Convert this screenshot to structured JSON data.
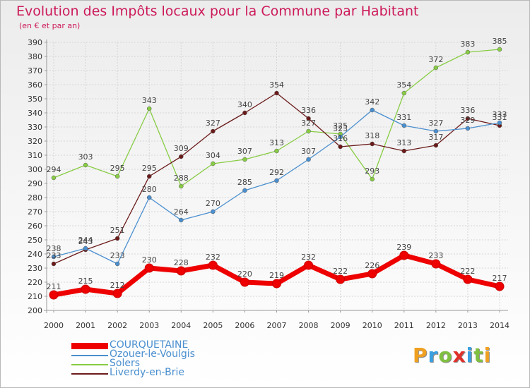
{
  "title": "Evolution des Impôts locaux pour la Commune par Habitant",
  "subtitle": "(en € et par an)",
  "logo": {
    "letters": [
      "P",
      "r",
      "o",
      "x",
      "i",
      "t",
      "i"
    ],
    "colors": [
      "#f0a020",
      "#3aa0e0",
      "#80c040",
      "#e0302a",
      "#3aa0e0",
      "#80c040",
      "#f0a020"
    ]
  },
  "chart_data": {
    "type": "line",
    "x": [
      "2000",
      "2001",
      "2002",
      "2003",
      "2004",
      "2005",
      "2006",
      "2007",
      "2008",
      "2009",
      "2010",
      "2011",
      "2012",
      "2013",
      "2014"
    ],
    "ylim": [
      200,
      390
    ],
    "yticks": [
      "390",
      "380",
      "370",
      "360",
      "350",
      "340",
      "330",
      "320",
      "310",
      "300",
      "290",
      "280",
      "270",
      "260",
      "250",
      "240",
      "230",
      "220",
      "210",
      "200"
    ],
    "grid": true,
    "legend_position": "bottom-left",
    "series": [
      {
        "name": "COURQUETAINE",
        "color": "#ee0000",
        "values": [
          211,
          215,
          212,
          230,
          228,
          232,
          220,
          219,
          232,
          222,
          226,
          239,
          233,
          222,
          217
        ],
        "labels": [
          "211",
          "215",
          "212",
          "230",
          "228",
          "232",
          "220",
          "219",
          "232",
          "222",
          "226",
          "239",
          "233",
          "222",
          "217"
        ]
      },
      {
        "name": "Ozouer-le-Voulgis",
        "color": "#4a8fcf",
        "values": [
          238,
          244,
          233,
          280,
          264,
          270,
          285,
          292,
          307,
          323,
          342,
          331,
          327,
          329,
          333
        ],
        "labels": [
          "238",
          "244",
          "233",
          "280",
          "264",
          "270",
          "285",
          "292",
          "307",
          "323",
          "342",
          "331",
          "327",
          "329",
          "333"
        ]
      },
      {
        "name": "Solers",
        "color": "#88cc44",
        "values": [
          294,
          303,
          295,
          343,
          288,
          304,
          307,
          313,
          327,
          325,
          293,
          354,
          372,
          383,
          385
        ],
        "labels": [
          "294",
          "303",
          "295",
          "343",
          "288",
          "304",
          "307",
          "313",
          "327",
          "325",
          "293",
          "354",
          "372",
          "383",
          "385"
        ]
      },
      {
        "name": "Liverdy-en-Brie",
        "color": "#6b1a1a",
        "values": [
          233,
          243,
          251,
          295,
          309,
          327,
          340,
          354,
          336,
          316,
          318,
          313,
          317,
          336,
          331
        ],
        "labels": [
          "233",
          "243",
          "251",
          "295",
          "309",
          "327",
          "340",
          "354",
          "336",
          "316",
          "318",
          "313",
          "317",
          "336",
          "331"
        ]
      }
    ]
  }
}
